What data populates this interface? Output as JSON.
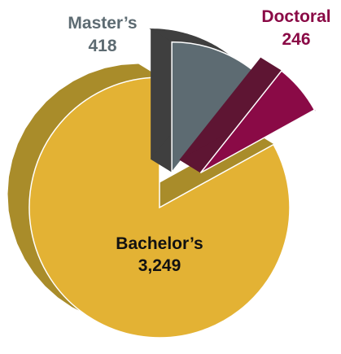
{
  "chart_data": {
    "type": "pie",
    "title": "",
    "slices": [
      {
        "label": "Bachelor’s",
        "value": 3249,
        "value_label": "3,249",
        "color": "#e3b234",
        "side_color": "#a98c2a",
        "label_color": "#111111"
      },
      {
        "label": "Master’s",
        "value": 418,
        "value_label": "418",
        "color": "#5d6b72",
        "side_color": "#3f3f3f",
        "label_color": "#5d6b72"
      },
      {
        "label": "Doctoral",
        "value": 246,
        "value_label": "246",
        "color": "#8a0a46",
        "side_color": "#5e1533",
        "label_color": "#8a0a46"
      }
    ],
    "style": "3d-exploded"
  }
}
